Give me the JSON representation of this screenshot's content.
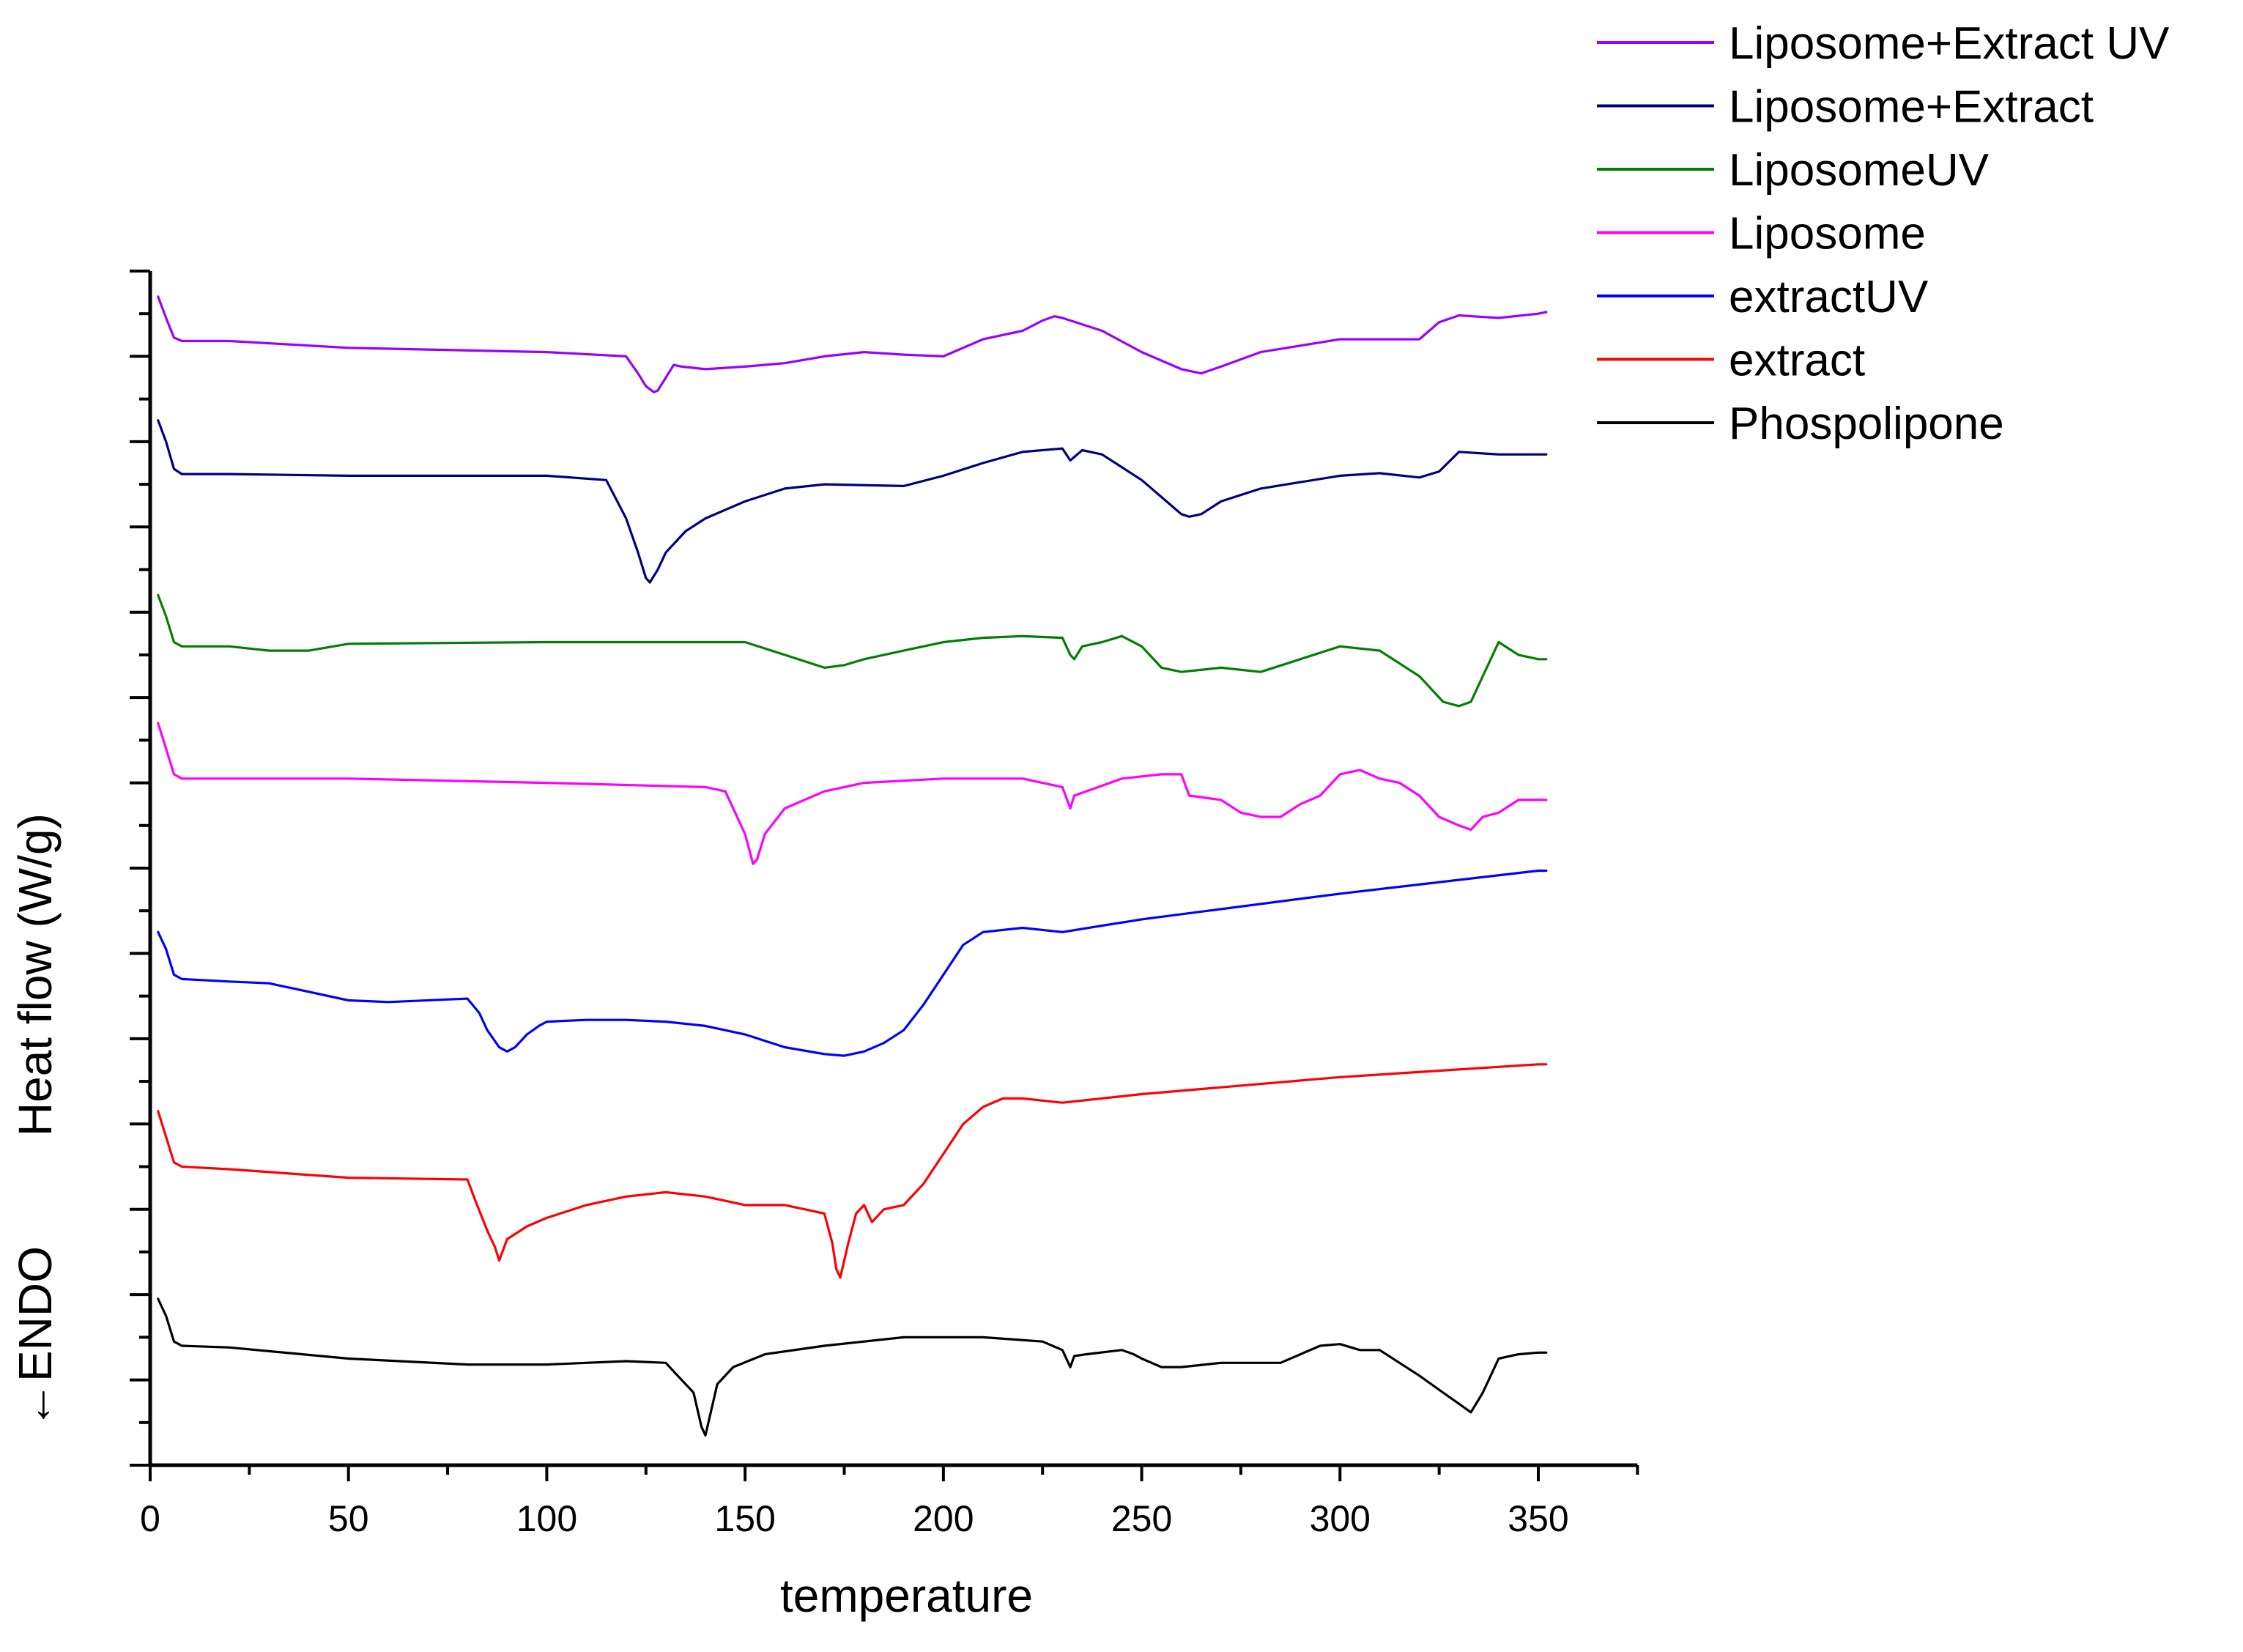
{
  "chart_data": {
    "type": "line",
    "title": "",
    "xlabel": "temperature",
    "ylabel": "Heat flow (W/g)",
    "ylabel_prefix": "←ENDO",
    "xlim": [
      0,
      375
    ],
    "xticks": [
      0,
      50,
      100,
      150,
      200,
      250,
      300,
      350
    ],
    "ylim": [
      0,
      14
    ],
    "y_tick_labels_shown": false,
    "grid": false,
    "legend_position": "top-right",
    "series": [
      {
        "name": "Phospolipone",
        "color": "#000000",
        "x": [
          2,
          4,
          6,
          8,
          20,
          50,
          80,
          100,
          120,
          130,
          133,
          137,
          139,
          140,
          141,
          143,
          147,
          155,
          170,
          180,
          190,
          210,
          225,
          230,
          232,
          233,
          236,
          245,
          248,
          250,
          255,
          260,
          270,
          285,
          295,
          300,
          305,
          310,
          320,
          326,
          330,
          333,
          336,
          340,
          345,
          350,
          352
        ],
        "y": [
          1.95,
          1.75,
          1.45,
          1.4,
          1.38,
          1.25,
          1.18,
          1.18,
          1.22,
          1.2,
          1.05,
          0.85,
          0.45,
          0.35,
          0.55,
          0.95,
          1.15,
          1.3,
          1.4,
          1.45,
          1.5,
          1.5,
          1.45,
          1.35,
          1.15,
          1.28,
          1.3,
          1.35,
          1.3,
          1.25,
          1.15,
          1.15,
          1.2,
          1.2,
          1.4,
          1.42,
          1.35,
          1.35,
          1.05,
          0.85,
          0.72,
          0.62,
          0.85,
          1.25,
          1.3,
          1.32,
          1.32
        ]
      },
      {
        "name": "extract",
        "color": "#ff0000",
        "x": [
          2,
          4,
          6,
          8,
          20,
          50,
          80,
          82,
          85,
          87,
          88,
          90,
          95,
          100,
          110,
          120,
          130,
          140,
          150,
          160,
          165,
          170,
          172,
          173,
          174,
          176,
          178,
          180,
          182,
          185,
          190,
          195,
          200,
          205,
          210,
          215,
          220,
          230,
          250,
          300,
          350,
          352
        ],
        "y": [
          4.15,
          3.85,
          3.55,
          3.5,
          3.47,
          3.37,
          3.35,
          3.1,
          2.75,
          2.55,
          2.4,
          2.65,
          2.8,
          2.9,
          3.05,
          3.15,
          3.2,
          3.15,
          3.05,
          3.05,
          3.0,
          2.95,
          2.6,
          2.3,
          2.2,
          2.6,
          2.95,
          3.05,
          2.85,
          3.0,
          3.05,
          3.3,
          3.65,
          4.0,
          4.2,
          4.3,
          4.3,
          4.25,
          4.35,
          4.55,
          4.7,
          4.7
        ]
      },
      {
        "name": "extractUV",
        "color": "#0000ff",
        "x": [
          2,
          4,
          6,
          8,
          20,
          30,
          40,
          50,
          60,
          80,
          83,
          85,
          88,
          90,
          92,
          95,
          98,
          100,
          110,
          120,
          130,
          140,
          150,
          160,
          170,
          175,
          180,
          185,
          190,
          195,
          200,
          205,
          210,
          220,
          230,
          250,
          300,
          350,
          352
        ],
        "y": [
          6.25,
          6.05,
          5.75,
          5.7,
          5.67,
          5.65,
          5.55,
          5.45,
          5.43,
          5.47,
          5.3,
          5.1,
          4.9,
          4.85,
          4.9,
          5.05,
          5.15,
          5.2,
          5.22,
          5.22,
          5.2,
          5.15,
          5.05,
          4.9,
          4.82,
          4.8,
          4.85,
          4.95,
          5.1,
          5.4,
          5.75,
          6.1,
          6.25,
          6.3,
          6.25,
          6.4,
          6.7,
          6.97,
          6.97
        ]
      },
      {
        "name": "Liposome",
        "color": "#ff00ff",
        "x": [
          2,
          4,
          6,
          8,
          20,
          50,
          100,
          140,
          145,
          148,
          150,
          152,
          153,
          155,
          160,
          170,
          180,
          200,
          220,
          230,
          232,
          233,
          236,
          245,
          255,
          260,
          262,
          270,
          275,
          280,
          285,
          290,
          295,
          300,
          305,
          310,
          315,
          320,
          325,
          330,
          333,
          336,
          340,
          345,
          350,
          352
        ],
        "y": [
          8.7,
          8.4,
          8.1,
          8.05,
          8.05,
          8.05,
          8.0,
          7.95,
          7.9,
          7.6,
          7.4,
          7.05,
          7.1,
          7.4,
          7.7,
          7.9,
          8.0,
          8.05,
          8.05,
          7.95,
          7.7,
          7.85,
          7.9,
          8.05,
          8.1,
          8.1,
          7.85,
          7.8,
          7.65,
          7.6,
          7.6,
          7.75,
          7.85,
          8.1,
          8.15,
          8.05,
          8.0,
          7.85,
          7.6,
          7.5,
          7.45,
          7.6,
          7.65,
          7.8,
          7.8,
          7.8
        ]
      },
      {
        "name": "LiposomeUV",
        "color": "#007f00",
        "x": [
          2,
          4,
          6,
          8,
          20,
          30,
          40,
          50,
          100,
          150,
          160,
          170,
          175,
          180,
          190,
          200,
          210,
          220,
          230,
          232,
          233,
          235,
          240,
          245,
          250,
          255,
          260,
          270,
          280,
          290,
          300,
          310,
          320,
          326,
          330,
          333,
          336,
          340,
          345,
          350,
          352
        ],
        "y": [
          10.2,
          9.95,
          9.65,
          9.6,
          9.6,
          9.55,
          9.55,
          9.63,
          9.65,
          9.65,
          9.5,
          9.35,
          9.38,
          9.45,
          9.55,
          9.65,
          9.7,
          9.72,
          9.7,
          9.5,
          9.45,
          9.6,
          9.65,
          9.72,
          9.6,
          9.35,
          9.3,
          9.35,
          9.3,
          9.45,
          9.6,
          9.55,
          9.25,
          8.95,
          8.9,
          8.95,
          9.25,
          9.65,
          9.5,
          9.45,
          9.45
        ]
      },
      {
        "name": "Liposome+Extract",
        "color": "#000080",
        "x": [
          2,
          4,
          6,
          8,
          20,
          50,
          100,
          115,
          120,
          123,
          125,
          126,
          128,
          130,
          135,
          140,
          150,
          160,
          170,
          190,
          200,
          210,
          220,
          230,
          232,
          235,
          240,
          250,
          255,
          260,
          262,
          265,
          270,
          280,
          300,
          310,
          320,
          325,
          330,
          340,
          350,
          352
        ],
        "y": [
          12.25,
          12.0,
          11.68,
          11.62,
          11.62,
          11.6,
          11.6,
          11.55,
          11.1,
          10.7,
          10.4,
          10.35,
          10.5,
          10.7,
          10.95,
          11.1,
          11.3,
          11.45,
          11.5,
          11.48,
          11.6,
          11.75,
          11.88,
          11.92,
          11.78,
          11.9,
          11.85,
          11.55,
          11.35,
          11.15,
          11.12,
          11.15,
          11.3,
          11.45,
          11.6,
          11.63,
          11.58,
          11.65,
          11.88,
          11.85,
          11.85,
          11.85
        ]
      },
      {
        "name": "Liposome+Extract UV",
        "color": "#9900ff",
        "x": [
          2,
          4,
          6,
          8,
          20,
          50,
          100,
          120,
          123,
          125,
          127,
          128,
          130,
          132,
          134,
          140,
          150,
          160,
          170,
          180,
          190,
          200,
          210,
          220,
          225,
          228,
          230,
          240,
          250,
          260,
          265,
          270,
          280,
          300,
          320,
          325,
          330,
          340,
          350,
          352
        ],
        "y": [
          13.7,
          13.45,
          13.22,
          13.18,
          13.18,
          13.1,
          13.05,
          13.0,
          12.8,
          12.65,
          12.58,
          12.6,
          12.75,
          12.9,
          12.88,
          12.85,
          12.88,
          12.92,
          13.0,
          13.05,
          13.02,
          13.0,
          13.2,
          13.3,
          13.42,
          13.47,
          13.45,
          13.3,
          13.05,
          12.85,
          12.8,
          12.88,
          13.05,
          13.2,
          13.2,
          13.4,
          13.48,
          13.45,
          13.5,
          13.52
        ]
      }
    ],
    "legend_order": [
      "Liposome+Extract UV",
      "Liposome+Extract",
      "LiposomeUV",
      "Liposome",
      "extractUV",
      "extract",
      "Phospolipone"
    ]
  }
}
